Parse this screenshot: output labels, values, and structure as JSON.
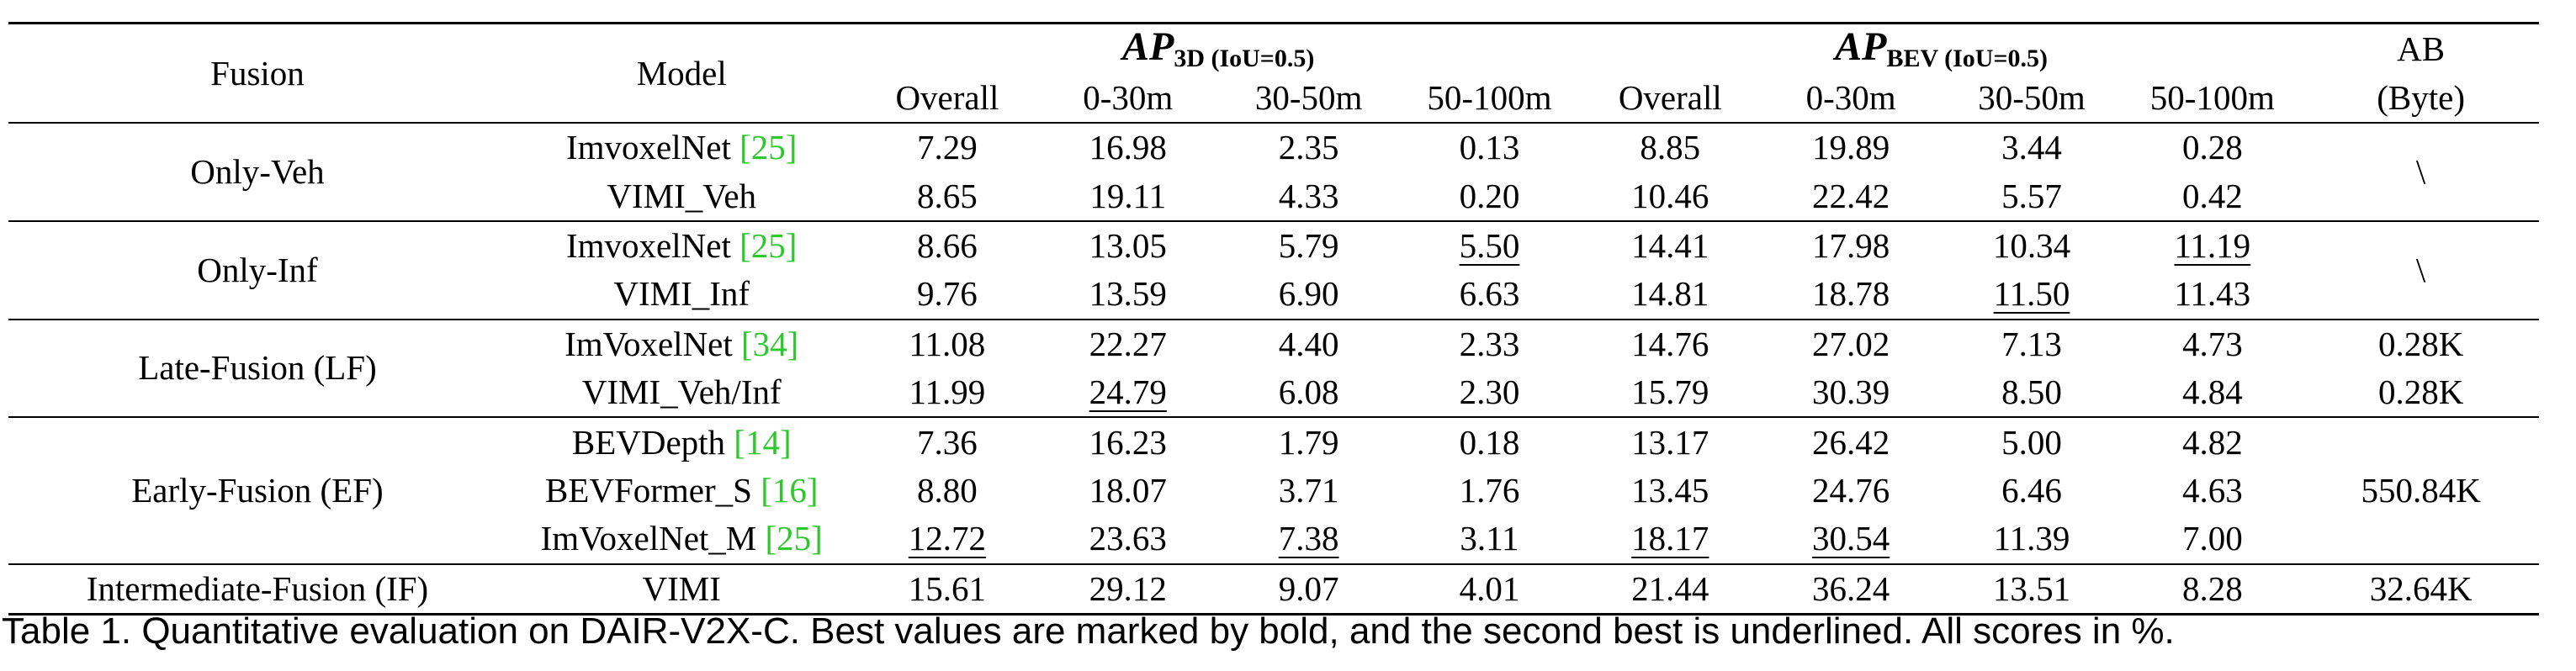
{
  "table": {
    "headers": {
      "fusion": "Fusion",
      "model": "Model",
      "ap3d": {
        "main": "AP",
        "sub": "3D (IoU=0.5)"
      },
      "apbev": {
        "main": "AP",
        "sub": "BEV (IoU=0.5)"
      },
      "ab_line1": "AB",
      "ab_line2": "(Byte)",
      "cols": [
        "Overall",
        "0-30m",
        "30-50m",
        "50-100m",
        "Overall",
        "0-30m",
        "30-50m",
        "50-100m"
      ]
    },
    "groups": [
      {
        "fusion": "Only-Veh",
        "ab": "\\",
        "rows": [
          {
            "model": "ImvoxelNet ",
            "cite": "[25]",
            "values": [
              "7.29",
              "16.98",
              "2.35",
              "0.13",
              "8.85",
              "19.89",
              "3.44",
              "0.28"
            ]
          },
          {
            "model": "VIMI_Veh",
            "cite": "",
            "values": [
              "8.65",
              "19.11",
              "4.33",
              "0.20",
              "10.46",
              "22.42",
              "5.57",
              "0.42"
            ]
          }
        ]
      },
      {
        "fusion": "Only-Inf",
        "ab": "\\",
        "rows": [
          {
            "model": "ImvoxelNet ",
            "cite": "[25]",
            "values": [
              "8.66",
              "13.05",
              "5.79",
              "5.50",
              "14.41",
              "17.98",
              "10.34",
              "11.19"
            ]
          },
          {
            "model": "VIMI_Inf",
            "cite": "",
            "values": [
              "9.76",
              "13.59",
              "6.90",
              "6.63",
              "14.81",
              "18.78",
              "11.50",
              "11.43"
            ]
          }
        ]
      },
      {
        "fusion": "Late-Fusion (LF)",
        "ab": "",
        "rows": [
          {
            "model": "ImVoxelNet ",
            "cite": "[34]",
            "values": [
              "11.08",
              "22.27",
              "4.40",
              "2.33",
              "14.76",
              "27.02",
              "7.13",
              "4.73"
            ],
            "ab": "0.28K"
          },
          {
            "model": "VIMI_Veh/Inf",
            "cite": "",
            "values": [
              "11.99",
              "24.79",
              "6.08",
              "2.30",
              "15.79",
              "30.39",
              "8.50",
              "4.84"
            ],
            "ab": "0.28K"
          }
        ]
      },
      {
        "fusion": "Early-Fusion (EF)",
        "ab": "550.84K",
        "rows": [
          {
            "model": "BEVDepth ",
            "cite": "[14]",
            "values": [
              "7.36",
              "16.23",
              "1.79",
              "0.18",
              "13.17",
              "26.42",
              "5.00",
              "4.82"
            ]
          },
          {
            "model": "BEVFormer_S ",
            "cite": "[16]",
            "values": [
              "8.80",
              "18.07",
              "3.71",
              "1.76",
              "13.45",
              "24.76",
              "6.46",
              "4.63"
            ]
          },
          {
            "model": "ImVoxelNet_M ",
            "cite": "[25]",
            "values": [
              "12.72",
              "23.63",
              "7.38",
              "3.11",
              "18.17",
              "30.54",
              "11.39",
              "7.00"
            ]
          }
        ]
      },
      {
        "fusion": "Intermediate-Fusion (IF)",
        "ab": "32.64K",
        "rows": [
          {
            "model": "VIMI",
            "cite": "",
            "values": [
              "15.61",
              "29.12",
              "9.07",
              "4.01",
              "21.44",
              "36.24",
              "13.51",
              "8.28"
            ]
          }
        ]
      }
    ]
  },
  "caption": "Table 1. Quantitative evaluation on DAIR-V2X-C. Best values are marked by bold, and the second best is underlined. All scores in %."
}
